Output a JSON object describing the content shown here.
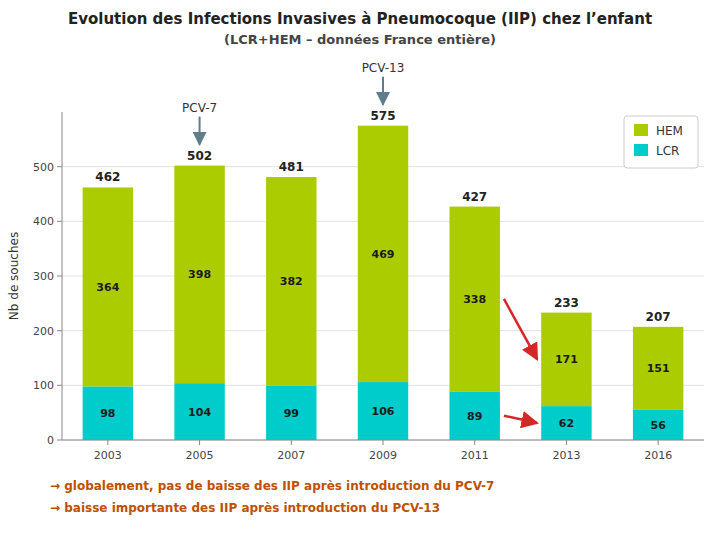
{
  "chart_data": {
    "type": "bar",
    "stacked": true,
    "title": "Evolution des Infections Invasives à Pneumocoque (IIP) chez l’enfant",
    "subtitle": "(LCR+HEM – données France entière)",
    "ylabel": "Nb de souches",
    "categories": [
      "2003",
      "2005",
      "2007",
      "2009",
      "2011",
      "2013",
      "2016"
    ],
    "series": [
      {
        "name": "LCR",
        "color": "#00cccc",
        "values": [
          98,
          104,
          99,
          106,
          89,
          62,
          56
        ]
      },
      {
        "name": "HEM",
        "color": "#aacc00",
        "values": [
          364,
          398,
          382,
          469,
          338,
          171,
          151
        ]
      }
    ],
    "totals": [
      462,
      502,
      481,
      575,
      427,
      233,
      207
    ],
    "ylim": [
      0,
      600
    ],
    "yticks": [
      0,
      100,
      200,
      300,
      400,
      500
    ],
    "grid": true,
    "legend": "upper right",
    "data_labels": true,
    "annotations": [
      {
        "text": "PCV-7",
        "x": "2005"
      },
      {
        "text": "PCV-13",
        "x": "2009"
      }
    ],
    "footnotes": [
      "→ globalement, pas de baisse des IIP après introduction du PCV-7",
      "→ baisse importante des IIP après introduction du PCV-13"
    ]
  }
}
